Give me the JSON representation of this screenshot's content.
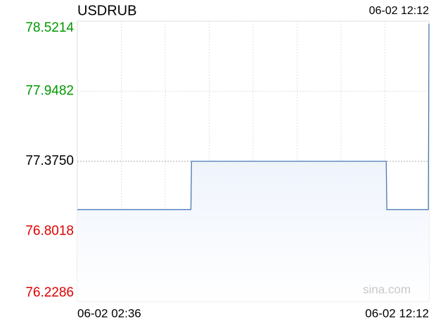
{
  "chart_data": {
    "type": "line",
    "title": "USDRUB",
    "timestamp": "06-02 12:12",
    "watermark": "sina.com",
    "x": [
      "06-02 02:36",
      "06-02 05:42",
      "06-02 05:43",
      "06-02 11:02",
      "06-02 11:03",
      "06-02 12:11",
      "06-02 12:12"
    ],
    "series": [
      {
        "name": "USDRUB",
        "color": "#4a78b5",
        "values": [
          76.98,
          76.98,
          77.375,
          77.375,
          76.98,
          76.98,
          78.5
        ]
      }
    ],
    "xlim": [
      "06-02 02:36",
      "06-02 12:12"
    ],
    "xticks": [
      "06-02 02:36",
      "06-02 12:12"
    ],
    "ylim": [
      76.2286,
      78.5214
    ],
    "yticks": [
      {
        "value": 76.2286,
        "label": "76.2286"
      },
      {
        "value": 76.8018,
        "label": "76.8018"
      },
      {
        "value": 77.375,
        "label": "77.3750"
      },
      {
        "value": 77.9482,
        "label": "77.9482"
      },
      {
        "value": 78.5214,
        "label": "78.5214"
      }
    ],
    "grid": true,
    "up_color": "#009900",
    "down_color": "#dd0000",
    "flat_color": "#000000"
  }
}
